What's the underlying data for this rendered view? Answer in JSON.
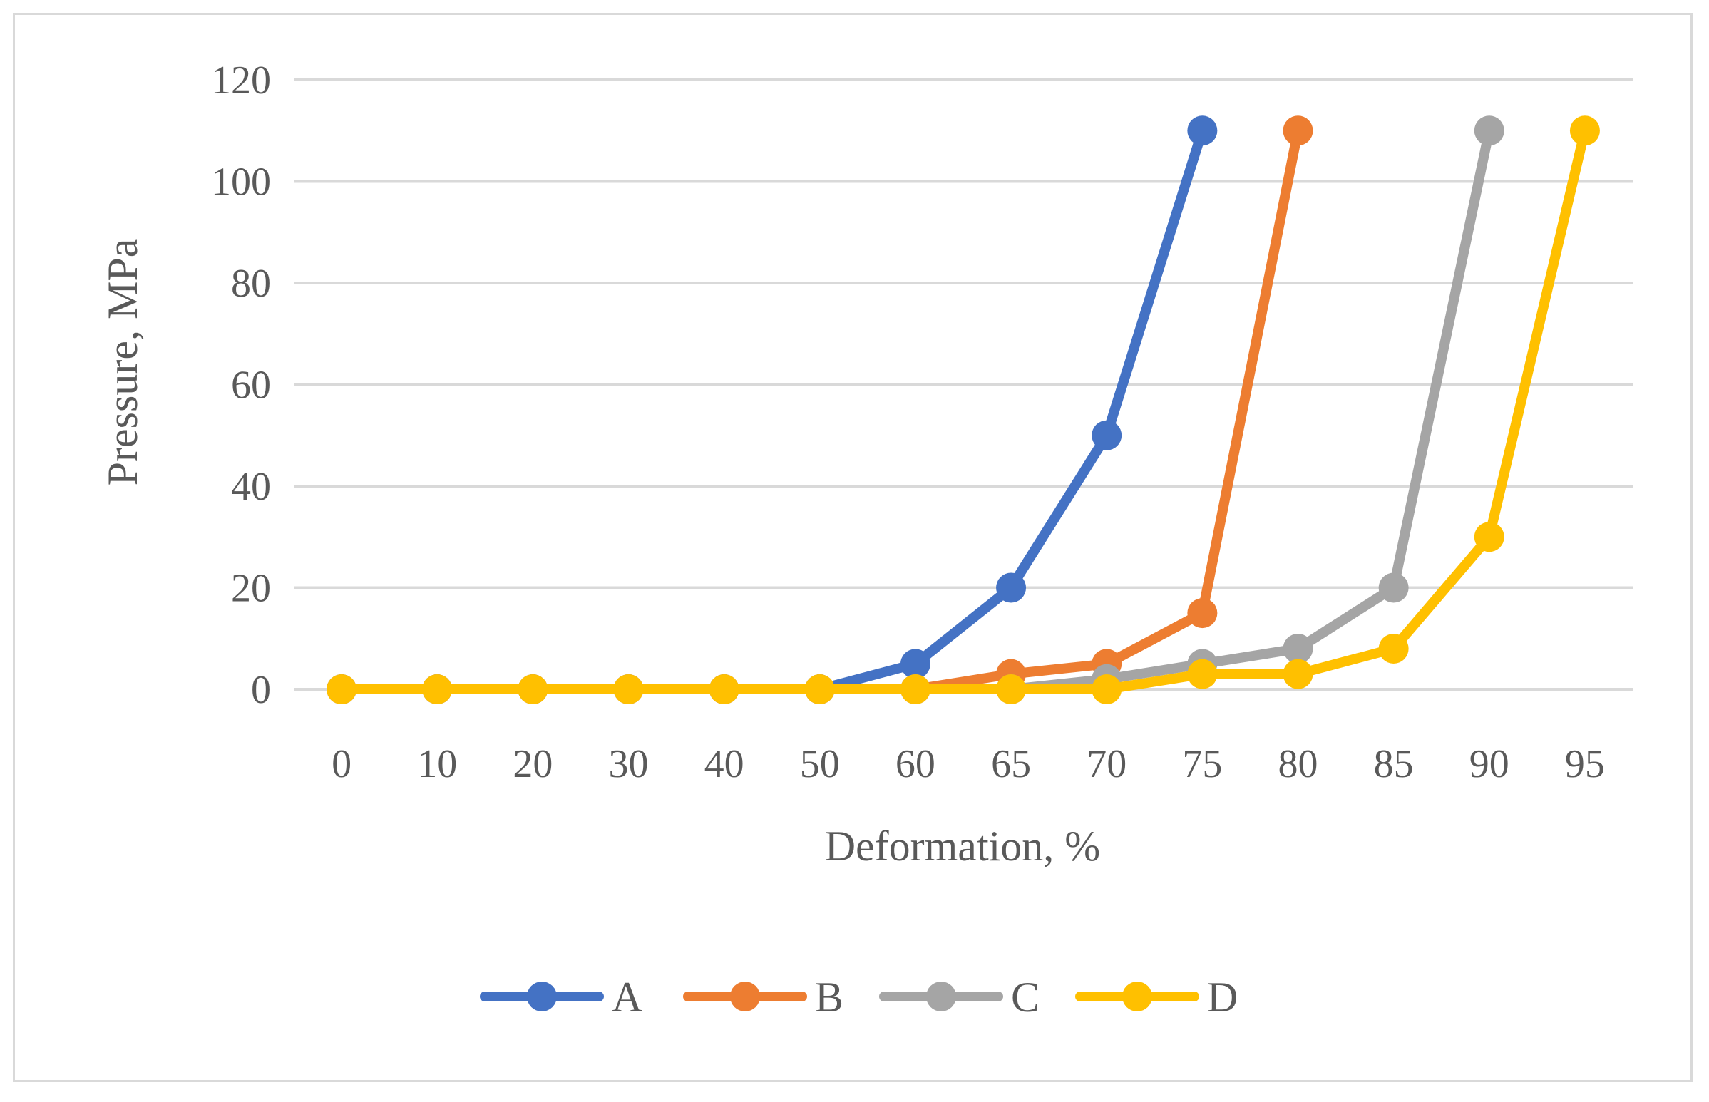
{
  "chart_data": {
    "type": "line",
    "title": "",
    "xlabel": "Deformation, %",
    "ylabel": "Pressure, MPa",
    "categories": [
      "0",
      "10",
      "20",
      "30",
      "40",
      "50",
      "60",
      "65",
      "70",
      "75",
      "80",
      "85",
      "90",
      "95"
    ],
    "ylim": [
      0,
      120
    ],
    "yticks": [
      0,
      20,
      40,
      60,
      80,
      100,
      120
    ],
    "grid": true,
    "legend_position": "bottom",
    "series": [
      {
        "name": "A",
        "color": "#4472C4",
        "values": [
          0,
          0,
          0,
          0,
          0,
          0,
          5,
          20,
          50,
          110,
          null,
          null,
          null,
          null
        ]
      },
      {
        "name": "B",
        "color": "#ED7D31",
        "values": [
          0,
          0,
          0,
          0,
          0,
          0,
          0,
          3,
          5,
          15,
          110,
          null,
          null,
          null
        ]
      },
      {
        "name": "C",
        "color": "#A5A5A5",
        "values": [
          0,
          0,
          0,
          0,
          0,
          0,
          0,
          0,
          2,
          5,
          8,
          20,
          110,
          null
        ]
      },
      {
        "name": "D",
        "color": "#FFC000",
        "values": [
          0,
          0,
          0,
          0,
          0,
          0,
          0,
          0,
          0,
          3,
          3,
          8,
          30,
          110
        ]
      }
    ]
  }
}
